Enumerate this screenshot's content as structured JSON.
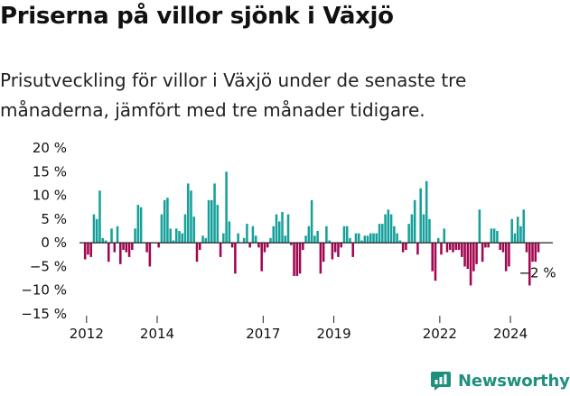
{
  "title": "Priserna på villor sjönk i Växjö",
  "subtitle": "Prisutveckling för villor i Växjö under de senaste tre månaderna, jämfört med tre månader tidigare.",
  "brand": {
    "name": "Newsworthy",
    "icon": "newsworthy-logo-icon"
  },
  "colors": {
    "positive": "#16a09a",
    "negative": "#a2064f",
    "axis": "#222222",
    "text": "#111111"
  },
  "chart_data": {
    "type": "bar",
    "title": "Priserna på villor sjönk i Växjö",
    "xlabel": "",
    "ylabel": "",
    "ylim": [
      -15,
      20
    ],
    "y_ticks": [
      "20 %",
      "15 %",
      "10 %",
      "5 %",
      "0 %",
      "−5 %",
      "−10 %",
      "−15 %"
    ],
    "y_tick_values": [
      20,
      15,
      10,
      5,
      0,
      -5,
      -10,
      -15
    ],
    "x_ticks": [
      "2012",
      "2014",
      "2017",
      "2019",
      "2022",
      "2024"
    ],
    "x_tick_positions": [
      2012.0,
      2014.0,
      2017.0,
      2019.0,
      2022.0,
      2024.0
    ],
    "x_range": [
      2011.8,
      2025.2
    ],
    "period": "monthly, 2011-12 to 2024-12",
    "annotation": {
      "text": "−2 %",
      "x": 2024.92,
      "value": -2
    },
    "values": [
      -3.5,
      -2.5,
      -3,
      6,
      5,
      11,
      1,
      0.5,
      -4,
      3,
      -2,
      3.5,
      -4.5,
      -1.5,
      -2,
      -3,
      -1.5,
      3,
      8,
      7.5,
      0,
      -2,
      -5,
      0,
      0,
      -1,
      6,
      9,
      9.5,
      3,
      0.5,
      3,
      2.5,
      2,
      6,
      12.5,
      11,
      5.5,
      -4,
      -1.5,
      1.5,
      1,
      9,
      9,
      12.5,
      8,
      -3,
      2,
      15,
      4.5,
      -1,
      -6.5,
      2,
      0,
      1,
      4,
      -1,
      3.5,
      1.5,
      -1,
      -6,
      -2,
      -1,
      1,
      3.5,
      6,
      4.5,
      6.5,
      1.5,
      6,
      -0.5,
      -7,
      -7,
      -6.5,
      -1.5,
      1.5,
      3.5,
      9,
      1.5,
      2.5,
      -6.5,
      -4,
      3.5,
      0.5,
      -3.5,
      -2,
      -3,
      -1,
      3.5,
      3.5,
      1,
      -3,
      2,
      2,
      0.5,
      1.5,
      1.5,
      2,
      2,
      2,
      4,
      4,
      6,
      7,
      6,
      3.5,
      2,
      0.5,
      -2,
      -1.5,
      4,
      6,
      9,
      -2.5,
      11.5,
      6,
      13,
      5,
      -6,
      -8,
      1,
      -2.5,
      3,
      -2,
      -1.5,
      -2,
      -1.5,
      -1.5,
      -3,
      -5,
      -5.5,
      -9,
      -6,
      -4.5,
      7,
      -4,
      -1,
      -1,
      3,
      3,
      2.5,
      -1.5,
      -2,
      -6,
      -5,
      5,
      2,
      5.5,
      3.5,
      7,
      -2,
      -9,
      -4,
      -4,
      -2
    ]
  }
}
